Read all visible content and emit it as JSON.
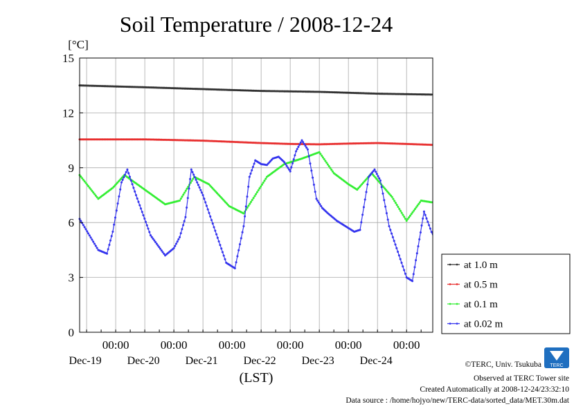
{
  "chart_data": {
    "type": "line",
    "title": "Soil Temperature / 2008-12-24",
    "ylabel": "[°C]",
    "xlabel": "(LST)",
    "ylim": [
      0,
      15
    ],
    "yticks": [
      "0",
      "3",
      "6",
      "9",
      "12",
      "15"
    ],
    "xlim": [
      -0.62,
      5.45
    ],
    "xticks": [
      {
        "time": "00:00",
        "date": "Dec-19"
      },
      {
        "time": "00:00",
        "date": "Dec-20"
      },
      {
        "time": "00:00",
        "date": "Dec-21"
      },
      {
        "time": "00:00",
        "date": "Dec-22"
      },
      {
        "time": "00:00",
        "date": "Dec-23"
      },
      {
        "time": "00:00",
        "date": "Dec-24"
      }
    ],
    "grid": true,
    "legend_position": "right",
    "series": [
      {
        "name": "at 1.0 m",
        "color": "#333333",
        "x": [
          -0.62,
          0.5,
          1.5,
          2.5,
          3.5,
          4.5,
          5.45
        ],
        "y": [
          13.5,
          13.4,
          13.3,
          13.2,
          13.15,
          13.05,
          13.0
        ]
      },
      {
        "name": "at 0.5 m",
        "color": "#e83030",
        "x": [
          -0.62,
          0.5,
          1.5,
          2.5,
          3.0,
          3.5,
          4.0,
          4.5,
          5.0,
          5.45
        ],
        "y": [
          10.55,
          10.55,
          10.48,
          10.35,
          10.3,
          10.28,
          10.32,
          10.35,
          10.3,
          10.25
        ]
      },
      {
        "name": "at 0.1 m",
        "color": "#33ee33",
        "x": [
          -0.62,
          -0.3,
          -0.05,
          0.15,
          0.5,
          0.85,
          1.1,
          1.35,
          1.6,
          1.95,
          2.2,
          2.6,
          2.9,
          3.0,
          3.2,
          3.5,
          3.75,
          4.0,
          4.15,
          4.4,
          4.75,
          5.0,
          5.25,
          5.45
        ],
        "y": [
          8.6,
          7.3,
          7.9,
          8.6,
          7.8,
          7.0,
          7.2,
          8.5,
          8.1,
          6.9,
          6.5,
          8.5,
          9.2,
          9.3,
          9.5,
          9.85,
          8.7,
          8.1,
          7.8,
          8.7,
          7.4,
          6.1,
          7.2,
          7.1
        ]
      },
      {
        "name": "at 0.02 m",
        "color": "#3333ee",
        "x": [
          -0.62,
          -0.3,
          -0.15,
          -0.05,
          0.1,
          0.2,
          0.35,
          0.6,
          0.85,
          1.0,
          1.1,
          1.2,
          1.3,
          1.5,
          1.9,
          2.05,
          2.2,
          2.3,
          2.4,
          2.5,
          2.6,
          2.7,
          2.8,
          2.9,
          3.0,
          3.1,
          3.2,
          3.3,
          3.45,
          3.55,
          3.65,
          3.8,
          4.1,
          4.2,
          4.35,
          4.45,
          4.55,
          4.7,
          5.0,
          5.1,
          5.3,
          5.45
        ],
        "y": [
          6.2,
          4.5,
          4.3,
          5.5,
          8.2,
          8.9,
          7.5,
          5.3,
          4.2,
          4.6,
          5.2,
          6.3,
          8.9,
          7.5,
          3.8,
          3.5,
          5.8,
          8.5,
          9.4,
          9.2,
          9.15,
          9.5,
          9.6,
          9.3,
          8.8,
          9.9,
          10.5,
          10.0,
          7.3,
          6.8,
          6.5,
          6.1,
          5.5,
          5.6,
          8.5,
          8.9,
          8.3,
          5.8,
          3.0,
          2.8,
          6.6,
          5.3
        ]
      }
    ]
  },
  "credits": {
    "copyright": "©TERC, Univ. Tsukuba",
    "site": "Observed at TERC Tower site",
    "created": "Created Automatically at 2008-12-24/23:32:10",
    "source": "Data source : /home/hojyo/new/TERC-data/sorted_data/MET.30m.dat",
    "logo_text": "TERC",
    "logo_color": "#1f6fc0"
  }
}
